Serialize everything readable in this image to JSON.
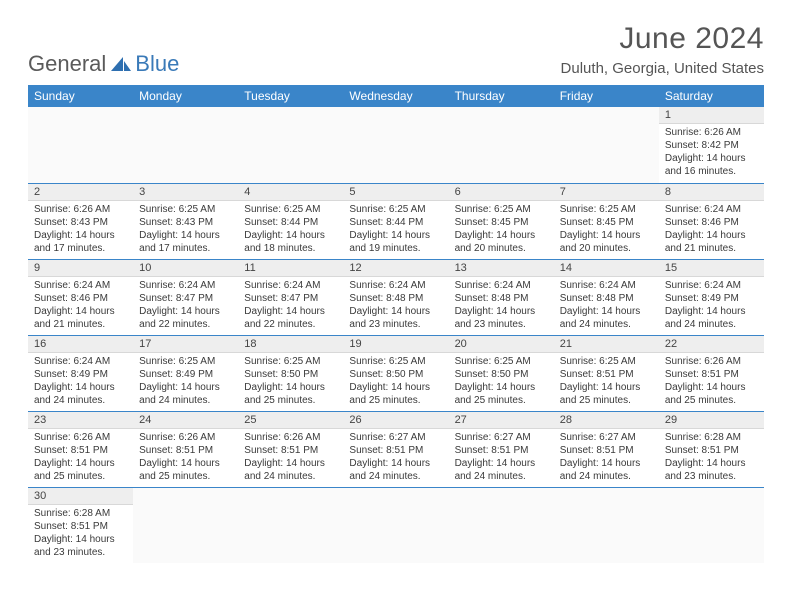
{
  "brand": {
    "part1": "General",
    "part2": "Blue"
  },
  "title": "June 2024",
  "location": "Duluth, Georgia, United States",
  "colors": {
    "header_bg": "#3a85c9",
    "header_text": "#ffffff",
    "daynum_bg": "#eeeeee",
    "row_border": "#3a85c9",
    "text": "#3a3a3a",
    "brand_gray": "#5a5a5a",
    "brand_blue": "#3a7ab8"
  },
  "typography": {
    "title_fontsize": 30,
    "location_fontsize": 15,
    "th_fontsize": 12,
    "cell_fontsize": 10
  },
  "weekdays": [
    "Sunday",
    "Monday",
    "Tuesday",
    "Wednesday",
    "Thursday",
    "Friday",
    "Saturday"
  ],
  "weeks": [
    [
      null,
      null,
      null,
      null,
      null,
      null,
      {
        "n": "1",
        "sr": "6:26 AM",
        "ss": "8:42 PM",
        "dl": "14 hours and 16 minutes."
      }
    ],
    [
      {
        "n": "2",
        "sr": "6:26 AM",
        "ss": "8:43 PM",
        "dl": "14 hours and 17 minutes."
      },
      {
        "n": "3",
        "sr": "6:25 AM",
        "ss": "8:43 PM",
        "dl": "14 hours and 17 minutes."
      },
      {
        "n": "4",
        "sr": "6:25 AM",
        "ss": "8:44 PM",
        "dl": "14 hours and 18 minutes."
      },
      {
        "n": "5",
        "sr": "6:25 AM",
        "ss": "8:44 PM",
        "dl": "14 hours and 19 minutes."
      },
      {
        "n": "6",
        "sr": "6:25 AM",
        "ss": "8:45 PM",
        "dl": "14 hours and 20 minutes."
      },
      {
        "n": "7",
        "sr": "6:25 AM",
        "ss": "8:45 PM",
        "dl": "14 hours and 20 minutes."
      },
      {
        "n": "8",
        "sr": "6:24 AM",
        "ss": "8:46 PM",
        "dl": "14 hours and 21 minutes."
      }
    ],
    [
      {
        "n": "9",
        "sr": "6:24 AM",
        "ss": "8:46 PM",
        "dl": "14 hours and 21 minutes."
      },
      {
        "n": "10",
        "sr": "6:24 AM",
        "ss": "8:47 PM",
        "dl": "14 hours and 22 minutes."
      },
      {
        "n": "11",
        "sr": "6:24 AM",
        "ss": "8:47 PM",
        "dl": "14 hours and 22 minutes."
      },
      {
        "n": "12",
        "sr": "6:24 AM",
        "ss": "8:48 PM",
        "dl": "14 hours and 23 minutes."
      },
      {
        "n": "13",
        "sr": "6:24 AM",
        "ss": "8:48 PM",
        "dl": "14 hours and 23 minutes."
      },
      {
        "n": "14",
        "sr": "6:24 AM",
        "ss": "8:48 PM",
        "dl": "14 hours and 24 minutes."
      },
      {
        "n": "15",
        "sr": "6:24 AM",
        "ss": "8:49 PM",
        "dl": "14 hours and 24 minutes."
      }
    ],
    [
      {
        "n": "16",
        "sr": "6:24 AM",
        "ss": "8:49 PM",
        "dl": "14 hours and 24 minutes."
      },
      {
        "n": "17",
        "sr": "6:25 AM",
        "ss": "8:49 PM",
        "dl": "14 hours and 24 minutes."
      },
      {
        "n": "18",
        "sr": "6:25 AM",
        "ss": "8:50 PM",
        "dl": "14 hours and 25 minutes."
      },
      {
        "n": "19",
        "sr": "6:25 AM",
        "ss": "8:50 PM",
        "dl": "14 hours and 25 minutes."
      },
      {
        "n": "20",
        "sr": "6:25 AM",
        "ss": "8:50 PM",
        "dl": "14 hours and 25 minutes."
      },
      {
        "n": "21",
        "sr": "6:25 AM",
        "ss": "8:51 PM",
        "dl": "14 hours and 25 minutes."
      },
      {
        "n": "22",
        "sr": "6:26 AM",
        "ss": "8:51 PM",
        "dl": "14 hours and 25 minutes."
      }
    ],
    [
      {
        "n": "23",
        "sr": "6:26 AM",
        "ss": "8:51 PM",
        "dl": "14 hours and 25 minutes."
      },
      {
        "n": "24",
        "sr": "6:26 AM",
        "ss": "8:51 PM",
        "dl": "14 hours and 25 minutes."
      },
      {
        "n": "25",
        "sr": "6:26 AM",
        "ss": "8:51 PM",
        "dl": "14 hours and 24 minutes."
      },
      {
        "n": "26",
        "sr": "6:27 AM",
        "ss": "8:51 PM",
        "dl": "14 hours and 24 minutes."
      },
      {
        "n": "27",
        "sr": "6:27 AM",
        "ss": "8:51 PM",
        "dl": "14 hours and 24 minutes."
      },
      {
        "n": "28",
        "sr": "6:27 AM",
        "ss": "8:51 PM",
        "dl": "14 hours and 24 minutes."
      },
      {
        "n": "29",
        "sr": "6:28 AM",
        "ss": "8:51 PM",
        "dl": "14 hours and 23 minutes."
      }
    ],
    [
      {
        "n": "30",
        "sr": "6:28 AM",
        "ss": "8:51 PM",
        "dl": "14 hours and 23 minutes."
      },
      null,
      null,
      null,
      null,
      null,
      null
    ]
  ],
  "labels": {
    "sunrise": "Sunrise: ",
    "sunset": "Sunset: ",
    "daylight": "Daylight: "
  }
}
